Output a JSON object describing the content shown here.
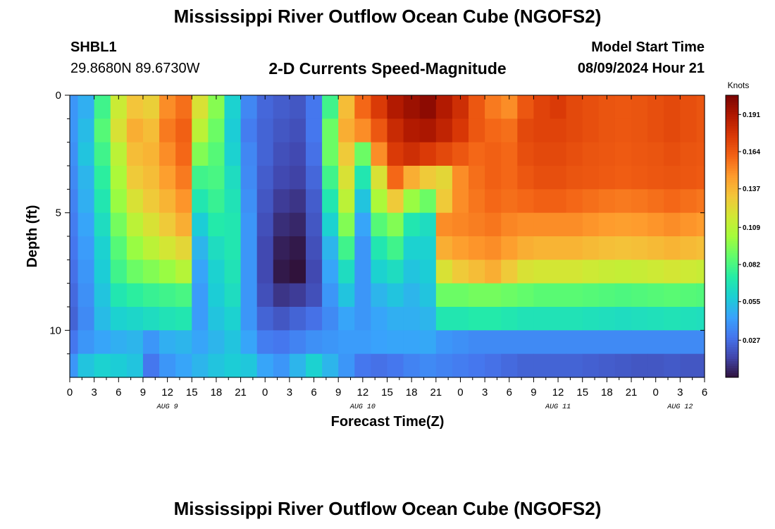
{
  "header": {
    "title": "Mississippi River Outflow Ocean Cube (NGOFS2)",
    "station": "SHBL1",
    "coordinates": "29.8680N  89.6730W",
    "subtitle": "2-D Currents Speed-Magnitude",
    "model_start_label": "Model Start Time",
    "model_start_value": "08/09/2024 Hour 21"
  },
  "footer": {
    "title": "Mississippi River Outflow Ocean Cube (NGOFS2)"
  },
  "chart_data": {
    "type": "heatmap",
    "title": "2-D Currents Speed-Magnitude",
    "xlabel": "Forecast Time(Z)",
    "ylabel": "Depth (ft)",
    "x_tick_labels": [
      "0",
      "3",
      "6",
      "9",
      "12",
      "15",
      "18",
      "21",
      "0",
      "3",
      "6",
      "9",
      "12",
      "15",
      "18",
      "21",
      "0",
      "3",
      "6",
      "9",
      "12",
      "15",
      "18",
      "21",
      "0",
      "3",
      "6"
    ],
    "date_labels": [
      {
        "label": "AUG 9",
        "tick_index": 4
      },
      {
        "label": "AUG 10",
        "tick_index": 12
      },
      {
        "label": "AUG 11",
        "tick_index": 20
      },
      {
        "label": "AUG 12",
        "tick_index": 25
      }
    ],
    "y_tick_labels": [
      "0",
      "5",
      "10"
    ],
    "ylim": [
      0,
      12
    ],
    "x_range_hours": [
      0,
      78
    ],
    "colorbar": {
      "units": "Knots",
      "ticks": [
        "0.191",
        "0.164",
        "0.137",
        "0.109",
        "0.082",
        "0.055",
        "0.027"
      ],
      "tick_values": [
        0.191,
        0.164,
        0.137,
        0.109,
        0.082,
        0.055,
        0.027
      ],
      "range": [
        0.0,
        0.205
      ]
    },
    "colormap": [
      "#30123b",
      "#4145ab",
      "#4675ed",
      "#39a2fc",
      "#1bcfd4",
      "#24eca6",
      "#61fc6c",
      "#a4fc3b",
      "#d1e834",
      "#f3c63a",
      "#fe9b2d",
      "#f36315",
      "#d93806",
      "#b11901",
      "#7a0402"
    ],
    "time_hours": [
      0,
      2,
      4,
      6,
      8,
      10,
      12,
      14,
      16,
      18,
      20,
      22,
      24,
      26,
      28,
      30,
      32,
      34,
      36,
      38,
      40,
      42,
      44,
      46,
      48,
      50,
      52,
      54,
      56,
      58,
      60,
      62,
      64,
      66,
      68,
      70,
      72,
      74,
      76,
      78
    ],
    "depth_rows_ft": [
      0.5,
      1.5,
      2.5,
      3.5,
      4.5,
      5.5,
      6.5,
      7.5,
      8.5,
      9.5,
      10.5,
      11.5
    ],
    "speed_knots": [
      [
        0.04,
        0.048,
        0.08,
        0.115,
        0.132,
        0.128,
        0.15,
        0.158,
        0.12,
        0.096,
        0.06,
        0.035,
        0.025,
        0.022,
        0.02,
        0.03,
        0.08,
        0.135,
        0.16,
        0.175,
        0.19,
        0.196,
        0.2,
        0.19,
        0.18,
        0.165,
        0.155,
        0.15,
        0.165,
        0.172,
        0.175,
        0.17,
        0.168,
        0.166,
        0.165,
        0.166,
        0.168,
        0.17,
        0.168,
        0.166
      ],
      [
        0.04,
        0.052,
        0.085,
        0.12,
        0.14,
        0.135,
        0.155,
        0.162,
        0.11,
        0.09,
        0.058,
        0.032,
        0.024,
        0.02,
        0.018,
        0.03,
        0.09,
        0.14,
        0.15,
        0.165,
        0.182,
        0.19,
        0.192,
        0.185,
        0.176,
        0.165,
        0.16,
        0.158,
        0.17,
        0.172,
        0.172,
        0.17,
        0.168,
        0.166,
        0.165,
        0.166,
        0.168,
        0.17,
        0.168,
        0.166
      ],
      [
        0.038,
        0.055,
        0.08,
        0.11,
        0.135,
        0.138,
        0.15,
        0.16,
        0.095,
        0.085,
        0.06,
        0.035,
        0.024,
        0.018,
        0.016,
        0.028,
        0.09,
        0.13,
        0.09,
        0.15,
        0.175,
        0.18,
        0.175,
        0.17,
        0.165,
        0.16,
        0.162,
        0.16,
        0.168,
        0.17,
        0.17,
        0.168,
        0.166,
        0.165,
        0.164,
        0.165,
        0.166,
        0.168,
        0.166,
        0.165
      ],
      [
        0.036,
        0.05,
        0.075,
        0.105,
        0.13,
        0.135,
        0.145,
        0.155,
        0.08,
        0.082,
        0.065,
        0.036,
        0.022,
        0.016,
        0.014,
        0.025,
        0.08,
        0.12,
        0.07,
        0.12,
        0.16,
        0.14,
        0.13,
        0.125,
        0.15,
        0.158,
        0.162,
        0.16,
        0.165,
        0.168,
        0.168,
        0.166,
        0.165,
        0.164,
        0.163,
        0.164,
        0.165,
        0.166,
        0.165,
        0.164
      ],
      [
        0.034,
        0.048,
        0.07,
        0.1,
        0.12,
        0.13,
        0.138,
        0.148,
        0.07,
        0.078,
        0.068,
        0.038,
        0.02,
        0.012,
        0.01,
        0.022,
        0.07,
        0.11,
        0.055,
        0.105,
        0.13,
        0.1,
        0.09,
        0.13,
        0.15,
        0.156,
        0.16,
        0.158,
        0.16,
        0.162,
        0.162,
        0.16,
        0.158,
        0.156,
        0.155,
        0.156,
        0.158,
        0.16,
        0.158,
        0.156
      ],
      [
        0.032,
        0.045,
        0.065,
        0.092,
        0.11,
        0.12,
        0.13,
        0.14,
        0.058,
        0.072,
        0.07,
        0.04,
        0.018,
        0.008,
        0.006,
        0.02,
        0.06,
        0.095,
        0.045,
        0.085,
        0.095,
        0.07,
        0.065,
        0.15,
        0.152,
        0.154,
        0.156,
        0.152,
        0.15,
        0.15,
        0.15,
        0.15,
        0.148,
        0.146,
        0.145,
        0.146,
        0.148,
        0.15,
        0.148,
        0.146
      ],
      [
        0.03,
        0.042,
        0.06,
        0.085,
        0.1,
        0.11,
        0.118,
        0.125,
        0.05,
        0.065,
        0.07,
        0.04,
        0.016,
        0.004,
        0.002,
        0.018,
        0.05,
        0.08,
        0.04,
        0.07,
        0.08,
        0.06,
        0.06,
        0.14,
        0.145,
        0.148,
        0.15,
        0.145,
        0.14,
        0.138,
        0.138,
        0.138,
        0.136,
        0.134,
        0.133,
        0.134,
        0.136,
        0.138,
        0.136,
        0.134
      ],
      [
        0.028,
        0.04,
        0.058,
        0.08,
        0.09,
        0.095,
        0.1,
        0.108,
        0.045,
        0.06,
        0.068,
        0.04,
        0.016,
        0.002,
        0.0,
        0.016,
        0.045,
        0.065,
        0.04,
        0.06,
        0.065,
        0.055,
        0.058,
        0.12,
        0.13,
        0.135,
        0.14,
        0.13,
        0.12,
        0.118,
        0.118,
        0.118,
        0.116,
        0.114,
        0.113,
        0.114,
        0.116,
        0.118,
        0.116,
        0.114
      ],
      [
        0.026,
        0.038,
        0.055,
        0.07,
        0.075,
        0.078,
        0.08,
        0.082,
        0.042,
        0.058,
        0.065,
        0.04,
        0.018,
        0.01,
        0.012,
        0.018,
        0.04,
        0.055,
        0.04,
        0.05,
        0.055,
        0.05,
        0.055,
        0.09,
        0.09,
        0.092,
        0.092,
        0.09,
        0.088,
        0.086,
        0.086,
        0.086,
        0.085,
        0.084,
        0.083,
        0.084,
        0.085,
        0.086,
        0.085,
        0.084
      ],
      [
        0.024,
        0.036,
        0.052,
        0.06,
        0.062,
        0.065,
        0.068,
        0.07,
        0.042,
        0.055,
        0.06,
        0.04,
        0.024,
        0.02,
        0.024,
        0.028,
        0.036,
        0.045,
        0.04,
        0.045,
        0.048,
        0.048,
        0.05,
        0.07,
        0.07,
        0.072,
        0.072,
        0.07,
        0.068,
        0.068,
        0.068,
        0.068,
        0.067,
        0.066,
        0.065,
        0.066,
        0.067,
        0.068,
        0.067,
        0.066
      ],
      [
        0.03,
        0.04,
        0.045,
        0.048,
        0.05,
        0.04,
        0.048,
        0.05,
        0.045,
        0.05,
        0.055,
        0.045,
        0.032,
        0.03,
        0.034,
        0.038,
        0.04,
        0.042,
        0.042,
        0.044,
        0.045,
        0.045,
        0.046,
        0.04,
        0.038,
        0.036,
        0.036,
        0.036,
        0.036,
        0.036,
        0.036,
        0.036,
        0.036,
        0.036,
        0.036,
        0.036,
        0.036,
        0.036,
        0.036,
        0.036
      ],
      [
        0.04,
        0.055,
        0.06,
        0.058,
        0.055,
        0.03,
        0.04,
        0.045,
        0.05,
        0.055,
        0.058,
        0.056,
        0.045,
        0.04,
        0.05,
        0.06,
        0.05,
        0.04,
        0.03,
        0.028,
        0.03,
        0.034,
        0.036,
        0.034,
        0.032,
        0.03,
        0.028,
        0.026,
        0.024,
        0.024,
        0.024,
        0.024,
        0.023,
        0.022,
        0.021,
        0.02,
        0.02,
        0.021,
        0.02,
        0.02
      ]
    ]
  }
}
